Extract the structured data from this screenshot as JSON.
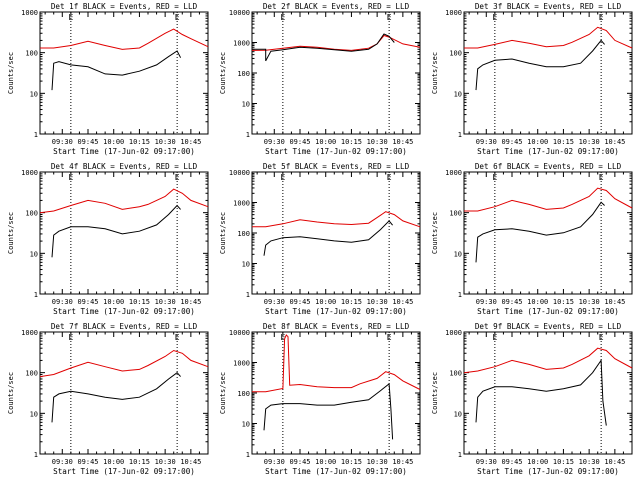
{
  "figure": {
    "colors": {
      "events": "#000000",
      "lld": "#e00000",
      "background": "#ffffff",
      "marker_lines": "#000000"
    }
  },
  "chart_data": [
    {
      "type": "line",
      "panel": 1,
      "title": "Det 1f BLACK = Events, RED = LLD",
      "xlabel": "Start Time (17-Jun-02 09:17:00)",
      "ylabel": "Counts/sec",
      "x_ticks": [
        "09:30",
        "09:45",
        "10:00",
        "10:15",
        "10:30",
        "10:45"
      ],
      "y_ticks": [
        1,
        10,
        100,
        1000
      ],
      "y_tick_labels": [
        "1",
        "10",
        "100",
        "1000"
      ],
      "xlim": [
        "09:17",
        "10:55"
      ],
      "ylim": [
        1,
        1000
      ],
      "y_scale": "log",
      "marker_lines": [
        "09:35",
        "10:37"
      ],
      "marker_label": "E",
      "series": [
        {
          "color": "#e00000",
          "x": [
            "09:17",
            "09:25",
            "09:35",
            "09:45",
            "09:55",
            "10:05",
            "10:15",
            "10:20",
            "10:30",
            "10:35",
            "10:40",
            "10:45",
            "10:55"
          ],
          "y": [
            130,
            130,
            150,
            190,
            150,
            120,
            130,
            170,
            300,
            380,
            280,
            220,
            140
          ]
        },
        {
          "color": "#000000",
          "x": [
            "09:24",
            "09:25",
            "09:28",
            "09:35",
            "09:45",
            "09:55",
            "10:05",
            "10:15",
            "10:25",
            "10:32",
            "10:37",
            "10:39"
          ],
          "y": [
            12,
            55,
            60,
            50,
            45,
            30,
            28,
            35,
            50,
            80,
            110,
            75
          ]
        }
      ]
    },
    {
      "type": "line",
      "panel": 2,
      "title": "Det 2f BLACK = Events, RED = LLD",
      "xlabel": "Start Time (17-Jun-02 09:17:00)",
      "ylabel": "Counts/sec",
      "x_ticks": [
        "09:30",
        "09:45",
        "10:00",
        "10:15",
        "10:30",
        "10:45"
      ],
      "y_ticks": [
        1,
        10,
        100,
        1000,
        10000
      ],
      "y_tick_labels": [
        "1",
        "10",
        "100",
        "1000",
        "10000"
      ],
      "xlim": [
        "09:17",
        "10:55"
      ],
      "ylim": [
        1,
        10000
      ],
      "y_scale": "log",
      "marker_lines": [
        "09:35",
        "10:37"
      ],
      "marker_label": "E",
      "series": [
        {
          "color": "#e00000",
          "x": [
            "09:17",
            "09:25",
            "09:35",
            "09:45",
            "09:55",
            "10:05",
            "10:15",
            "10:25",
            "10:30",
            "10:34",
            "10:37",
            "10:45",
            "10:55"
          ],
          "y": [
            550,
            560,
            650,
            750,
            700,
            600,
            550,
            650,
            900,
            1700,
            1500,
            900,
            700
          ]
        },
        {
          "color": "#000000",
          "x": [
            "09:17",
            "09:25",
            "09:25",
            "09:28",
            "09:35",
            "09:45",
            "09:55",
            "10:05",
            "10:15",
            "10:25",
            "10:30",
            "10:34",
            "10:37",
            "10:40"
          ],
          "y": [
            600,
            600,
            250,
            520,
            580,
            700,
            650,
            580,
            520,
            600,
            900,
            1900,
            1600,
            1000
          ]
        }
      ]
    },
    {
      "type": "line",
      "panel": 3,
      "title": "Det 3f BLACK = Events, RED = LLD",
      "xlabel": "Start Time (17-Jun-02 09:17:00)",
      "ylabel": "Counts/sec",
      "x_ticks": [
        "09:30",
        "09:45",
        "10:00",
        "10:15",
        "10:30",
        "10:45"
      ],
      "y_ticks": [
        1,
        10,
        100,
        1000
      ],
      "y_tick_labels": [
        "1",
        "10",
        "100",
        "1000"
      ],
      "xlim": [
        "09:17",
        "10:55"
      ],
      "ylim": [
        1,
        1000
      ],
      "y_scale": "log",
      "marker_lines": [
        "09:35",
        "10:37"
      ],
      "marker_label": "E",
      "series": [
        {
          "color": "#e00000",
          "x": [
            "09:17",
            "09:25",
            "09:35",
            "09:45",
            "09:55",
            "10:05",
            "10:15",
            "10:20",
            "10:30",
            "10:35",
            "10:40",
            "10:45",
            "10:55"
          ],
          "y": [
            130,
            130,
            160,
            200,
            170,
            140,
            150,
            180,
            280,
            420,
            350,
            200,
            130
          ]
        },
        {
          "color": "#000000",
          "x": [
            "09:24",
            "09:25",
            "09:28",
            "09:35",
            "09:45",
            "09:55",
            "10:05",
            "10:15",
            "10:25",
            "10:32",
            "10:37",
            "10:39"
          ],
          "y": [
            12,
            40,
            50,
            65,
            70,
            55,
            45,
            45,
            55,
            110,
            200,
            160
          ]
        }
      ]
    },
    {
      "type": "line",
      "panel": 4,
      "title": "Det 4f BLACK = Events, RED = LLD",
      "xlabel": "Start Time (17-Jun-02 09:17:00)",
      "ylabel": "Counts/sec",
      "x_ticks": [
        "09:30",
        "09:45",
        "10:00",
        "10:15",
        "10:30",
        "10:45"
      ],
      "y_ticks": [
        1,
        10,
        100,
        1000
      ],
      "y_tick_labels": [
        "1",
        "10",
        "100",
        "1000"
      ],
      "xlim": [
        "09:17",
        "10:55"
      ],
      "ylim": [
        1,
        1000
      ],
      "y_scale": "log",
      "marker_lines": [
        "09:35",
        "10:37"
      ],
      "marker_label": "E",
      "series": [
        {
          "color": "#e00000",
          "x": [
            "09:17",
            "09:25",
            "09:35",
            "09:45",
            "09:55",
            "10:05",
            "10:15",
            "10:20",
            "10:30",
            "10:35",
            "10:40",
            "10:45",
            "10:55"
          ],
          "y": [
            100,
            110,
            150,
            200,
            170,
            120,
            140,
            160,
            250,
            380,
            300,
            200,
            140
          ]
        },
        {
          "color": "#000000",
          "x": [
            "09:24",
            "09:25",
            "09:28",
            "09:35",
            "09:45",
            "09:55",
            "10:05",
            "10:15",
            "10:25",
            "10:32",
            "10:37",
            "10:39"
          ],
          "y": [
            8,
            28,
            35,
            45,
            45,
            40,
            30,
            35,
            50,
            90,
            150,
            120
          ]
        }
      ]
    },
    {
      "type": "line",
      "panel": 5,
      "title": "Det 5f BLACK = Events, RED = LLD",
      "xlabel": "Start Time (17-Jun-02 09:17:00)",
      "ylabel": "Counts/sec",
      "x_ticks": [
        "09:30",
        "09:45",
        "10:00",
        "10:15",
        "10:30",
        "10:45"
      ],
      "y_ticks": [
        1,
        10,
        100,
        1000,
        10000
      ],
      "y_tick_labels": [
        "1",
        "10",
        "100",
        "1000",
        "10000"
      ],
      "xlim": [
        "09:17",
        "10:55"
      ],
      "ylim": [
        1,
        10000
      ],
      "y_scale": "log",
      "marker_lines": [
        "09:35",
        "10:37"
      ],
      "marker_label": "E",
      "series": [
        {
          "color": "#e00000",
          "x": [
            "09:17",
            "09:25",
            "09:35",
            "09:45",
            "09:55",
            "10:05",
            "10:15",
            "10:25",
            "10:30",
            "10:35",
            "10:40",
            "10:45",
            "10:55"
          ],
          "y": [
            160,
            160,
            200,
            270,
            230,
            200,
            190,
            210,
            320,
            500,
            400,
            250,
            160
          ]
        },
        {
          "color": "#000000",
          "x": [
            "09:24",
            "09:25",
            "09:28",
            "09:35",
            "09:45",
            "09:55",
            "10:05",
            "10:15",
            "10:25",
            "10:32",
            "10:37",
            "10:39"
          ],
          "y": [
            18,
            40,
            55,
            70,
            75,
            65,
            55,
            50,
            60,
            130,
            250,
            180
          ]
        }
      ]
    },
    {
      "type": "line",
      "panel": 6,
      "title": "Det 6f BLACK = Events, RED = LLD",
      "xlabel": "Start Time (17-Jun-02 09:17:00)",
      "ylabel": "Counts/sec",
      "x_ticks": [
        "09:30",
        "09:45",
        "10:00",
        "10:15",
        "10:30",
        "10:45"
      ],
      "y_ticks": [
        1,
        10,
        100,
        1000
      ],
      "y_tick_labels": [
        "1",
        "10",
        "100",
        "1000"
      ],
      "xlim": [
        "09:17",
        "10:55"
      ],
      "ylim": [
        1,
        1000
      ],
      "y_scale": "log",
      "marker_lines": [
        "09:35",
        "10:37"
      ],
      "marker_label": "E",
      "series": [
        {
          "color": "#e00000",
          "x": [
            "09:17",
            "09:25",
            "09:35",
            "09:45",
            "09:55",
            "10:05",
            "10:15",
            "10:20",
            "10:30",
            "10:35",
            "10:40",
            "10:45",
            "10:55"
          ],
          "y": [
            110,
            110,
            140,
            200,
            160,
            120,
            130,
            160,
            250,
            400,
            350,
            220,
            130
          ]
        },
        {
          "color": "#000000",
          "x": [
            "09:24",
            "09:25",
            "09:28",
            "09:35",
            "09:45",
            "09:55",
            "10:05",
            "10:15",
            "10:25",
            "10:32",
            "10:37",
            "10:39"
          ],
          "y": [
            6,
            25,
            30,
            38,
            40,
            35,
            28,
            32,
            45,
            90,
            180,
            150
          ]
        }
      ]
    },
    {
      "type": "line",
      "panel": 7,
      "title": "Det 7f BLACK = Events, RED = LLD",
      "xlabel": "Start Time (17-Jun-02 09:17:00)",
      "ylabel": "Counts/sec",
      "x_ticks": [
        "09:30",
        "09:45",
        "10:00",
        "10:15",
        "10:30",
        "10:45"
      ],
      "y_ticks": [
        1,
        10,
        100,
        1000
      ],
      "y_tick_labels": [
        "1",
        "10",
        "100",
        "1000"
      ],
      "xlim": [
        "09:17",
        "10:55"
      ],
      "ylim": [
        1,
        1000
      ],
      "y_scale": "log",
      "marker_lines": [
        "09:35",
        "10:37"
      ],
      "marker_label": "E",
      "series": [
        {
          "color": "#e00000",
          "x": [
            "09:17",
            "09:25",
            "09:35",
            "09:45",
            "09:55",
            "10:05",
            "10:15",
            "10:20",
            "10:30",
            "10:35",
            "10:40",
            "10:45",
            "10:55"
          ],
          "y": [
            80,
            90,
            130,
            180,
            140,
            110,
            120,
            150,
            250,
            350,
            300,
            200,
            140
          ]
        },
        {
          "color": "#000000",
          "x": [
            "09:24",
            "09:25",
            "09:28",
            "09:35",
            "09:45",
            "09:55",
            "10:05",
            "10:15",
            "10:25",
            "10:32",
            "10:37",
            "10:39"
          ],
          "y": [
            6,
            25,
            30,
            35,
            30,
            25,
            22,
            25,
            40,
            70,
            100,
            80
          ]
        }
      ]
    },
    {
      "type": "line",
      "panel": 8,
      "title": "Det 8f BLACK = Events, RED = LLD",
      "xlabel": "Start Time (17-Jun-02 09:17:00)",
      "ylabel": "Counts/sec",
      "x_ticks": [
        "09:30",
        "09:45",
        "10:00",
        "10:15",
        "10:30",
        "10:45"
      ],
      "y_ticks": [
        1,
        10,
        100,
        1000,
        10000
      ],
      "y_tick_labels": [
        "1",
        "10",
        "100",
        "1000",
        "10000"
      ],
      "xlim": [
        "09:17",
        "10:55"
      ],
      "ylim": [
        1,
        10000
      ],
      "y_scale": "log",
      "marker_lines": [
        "09:35",
        "10:37"
      ],
      "marker_label": "E",
      "series": [
        {
          "color": "#e00000",
          "x": [
            "09:17",
            "09:25",
            "09:35",
            "09:36",
            "09:37",
            "09:38",
            "09:39",
            "09:45",
            "09:55",
            "10:05",
            "10:15",
            "10:20",
            "10:30",
            "10:35",
            "10:40",
            "10:45",
            "10:55"
          ],
          "y": [
            110,
            110,
            140,
            6000,
            8000,
            7000,
            180,
            190,
            160,
            150,
            150,
            200,
            300,
            500,
            400,
            250,
            130
          ]
        },
        {
          "color": "#000000",
          "x": [
            "09:24",
            "09:25",
            "09:28",
            "09:35",
            "09:45",
            "09:55",
            "10:05",
            "10:15",
            "10:25",
            "10:32",
            "10:37",
            "10:38",
            "10:39"
          ],
          "y": [
            6,
            30,
            40,
            45,
            45,
            40,
            40,
            50,
            60,
            120,
            200,
            30,
            3
          ]
        }
      ]
    },
    {
      "type": "line",
      "panel": 9,
      "title": "Det 9f BLACK = Events, RED = LLD",
      "xlabel": "Start Time (17-Jun-02 09:17:00)",
      "ylabel": "Counts/sec",
      "x_ticks": [
        "09:30",
        "09:45",
        "10:00",
        "10:15",
        "10:30",
        "10:45"
      ],
      "y_ticks": [
        1,
        10,
        100,
        1000
      ],
      "y_tick_labels": [
        "1",
        "10",
        "100",
        "1000"
      ],
      "xlim": [
        "09:17",
        "10:55"
      ],
      "ylim": [
        1,
        1000
      ],
      "y_scale": "log",
      "marker_lines": [
        "09:35",
        "10:37"
      ],
      "marker_label": "E",
      "series": [
        {
          "color": "#e00000",
          "x": [
            "09:17",
            "09:25",
            "09:35",
            "09:45",
            "09:55",
            "10:05",
            "10:15",
            "10:20",
            "10:30",
            "10:35",
            "10:40",
            "10:45",
            "10:55"
          ],
          "y": [
            100,
            110,
            140,
            200,
            160,
            120,
            130,
            160,
            260,
            400,
            350,
            220,
            130
          ]
        },
        {
          "color": "#000000",
          "x": [
            "09:24",
            "09:25",
            "09:28",
            "09:35",
            "09:45",
            "09:55",
            "10:05",
            "10:15",
            "10:25",
            "10:32",
            "10:37",
            "10:38",
            "10:40"
          ],
          "y": [
            6,
            25,
            35,
            45,
            45,
            40,
            35,
            40,
            50,
            100,
            200,
            20,
            5
          ]
        }
      ]
    }
  ]
}
